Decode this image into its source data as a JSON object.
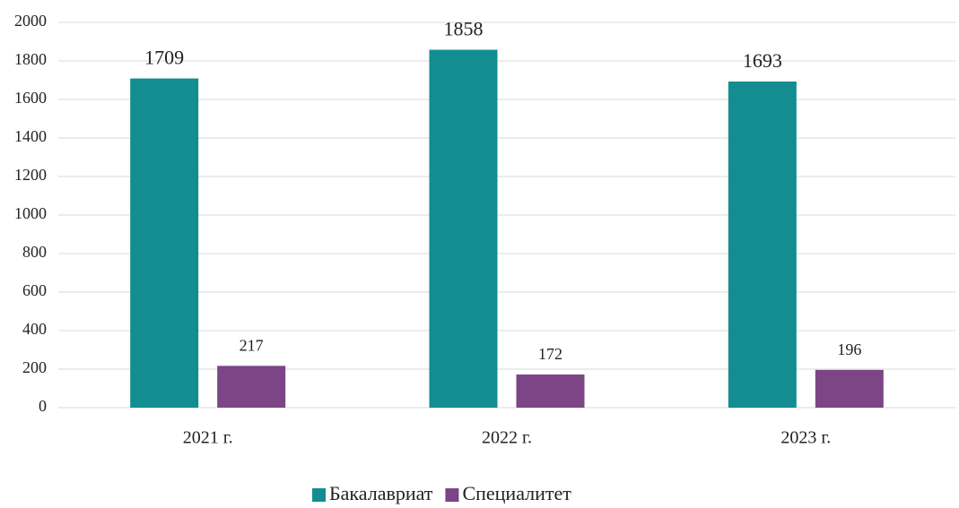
{
  "chart_data": {
    "type": "bar",
    "categories": [
      "2021 г.",
      "2022 г.",
      "2023 г."
    ],
    "series": [
      {
        "name": "Бакалавриат",
        "color": "#138d90",
        "values": [
          1709,
          1858,
          1693
        ]
      },
      {
        "name": "Специалитет",
        "color": "#7b4586",
        "values": [
          217,
          172,
          196
        ]
      }
    ],
    "ylim": [
      0,
      2000
    ],
    "yticks": [
      0,
      200,
      400,
      600,
      800,
      1000,
      1200,
      1400,
      1600,
      1800,
      2000
    ],
    "grid": true,
    "legend": "bottom"
  }
}
